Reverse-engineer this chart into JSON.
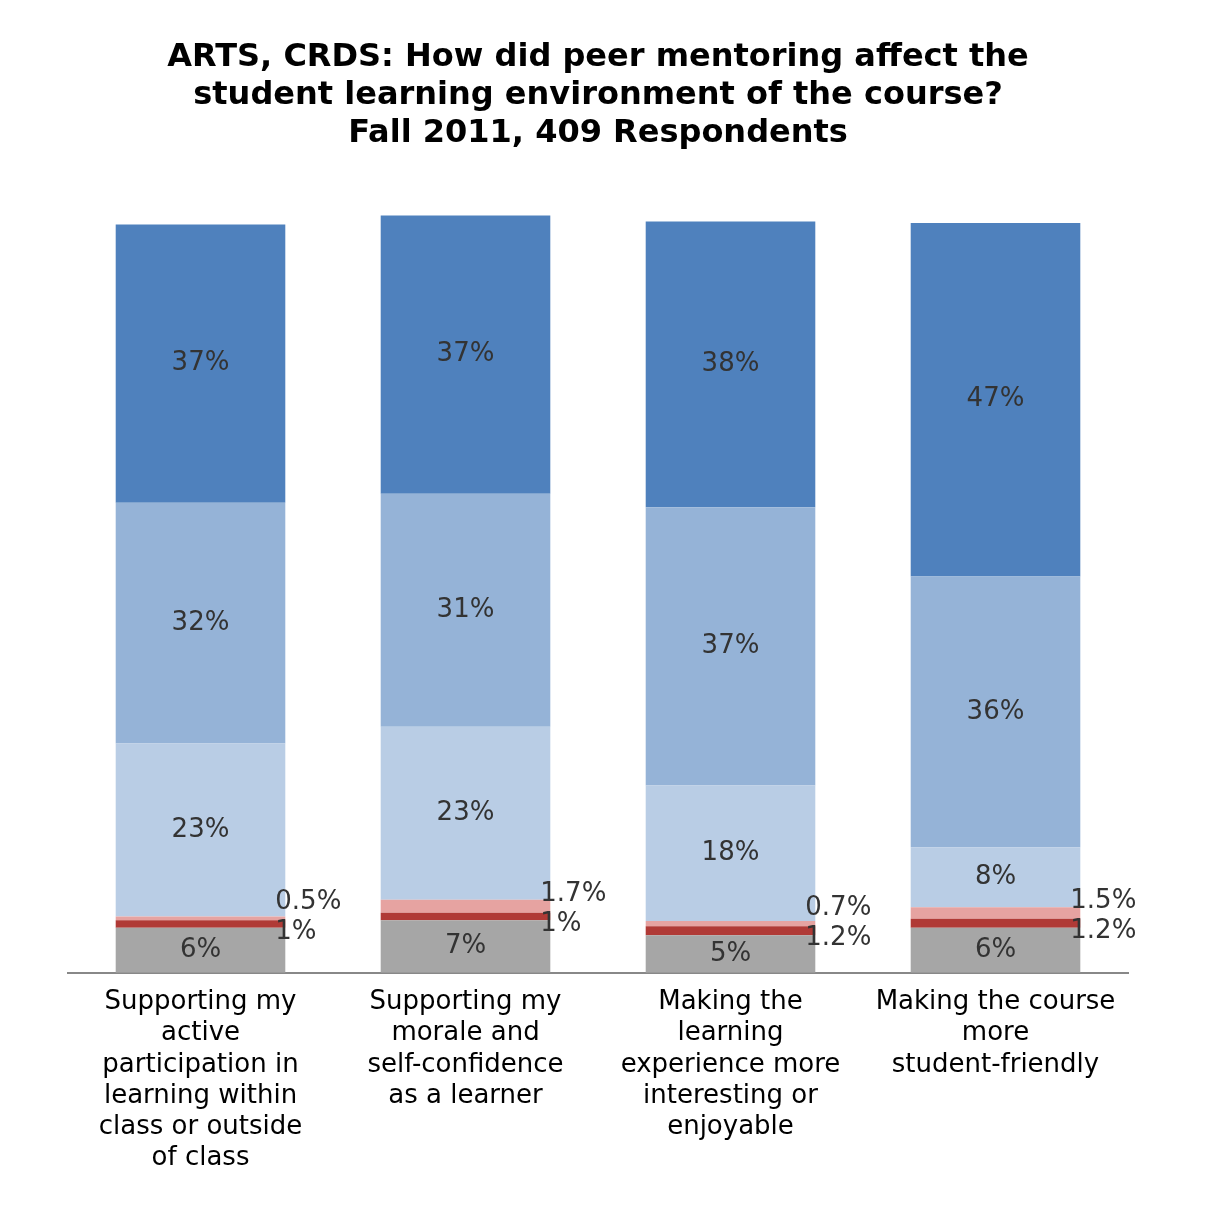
{
  "chart_data": {
    "type": "bar",
    "stacked": true,
    "title": "ARTS, CRDS: How did peer mentoring affect the student learning environment of the course?",
    "subtitle": "Fall 2011, 409 Respondents",
    "categories": [
      "Supporting my active participation in learning within class or outside of class",
      "Supporting my morale and self-confidence as a learner",
      "Making the learning experience more interesting or enjoyable",
      "Making the course more student-friendly"
    ],
    "series": [
      {
        "color": "#a6a6a6",
        "values": [
          6,
          7,
          5,
          6
        ],
        "value_labels": [
          "6%",
          "7%",
          "5%",
          "6%"
        ]
      },
      {
        "color": "#b03a36",
        "values": [
          1,
          1,
          1.2,
          1.2
        ],
        "value_labels": [
          "1%",
          "1%",
          "1.2%",
          "1.2%"
        ]
      },
      {
        "color": "#e6a3a1",
        "values": [
          0.5,
          1.7,
          0.7,
          1.5
        ],
        "value_labels": [
          "0.5%",
          "1.7%",
          "0.7%",
          "1.5%"
        ]
      },
      {
        "color": "#b9cde5",
        "values": [
          23,
          23,
          18,
          8
        ],
        "value_labels": [
          "23%",
          "23%",
          "18%",
          "8%"
        ]
      },
      {
        "color": "#95b3d7",
        "values": [
          32,
          31,
          37,
          36
        ],
        "value_labels": [
          "32%",
          "31%",
          "37%",
          "36%"
        ]
      },
      {
        "color": "#4f81bd",
        "values": [
          37,
          37,
          38,
          47
        ],
        "value_labels": [
          "37%",
          "37%",
          "38%",
          "47%"
        ]
      }
    ],
    "ylim": [
      0,
      101
    ],
    "tick_labels": "x",
    "grid": false,
    "legend": false
  }
}
